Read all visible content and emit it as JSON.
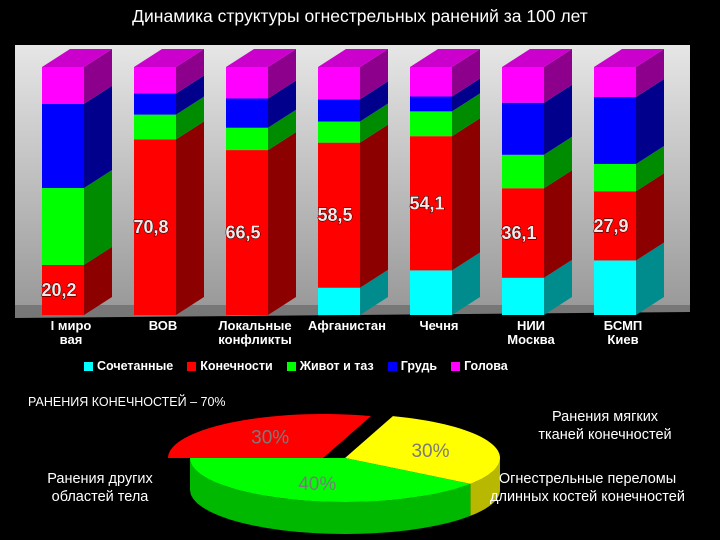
{
  "chart_data": [
    {
      "type": "bar",
      "stacked": true,
      "title": "Динамика структуры огнестрельных ранений за 100 лет",
      "categories": [
        "I миро\nвая",
        "ВОВ",
        "Локальные\nконфликты",
        "Афганистан",
        "Чечня",
        "НИИ\nМосква",
        "БСМП\nКиев"
      ],
      "ylim": [
        0,
        100
      ],
      "series": [
        {
          "name": "Сочетанные",
          "color": "#00ffff",
          "values": [
            0,
            0,
            0,
            11,
            18,
            15,
            22
          ]
        },
        {
          "name": "Конечности",
          "color": "#ff0000",
          "values": [
            20.2,
            70.8,
            66.5,
            58.5,
            54.1,
            36.1,
            27.9
          ],
          "value_labels": [
            "20,2",
            "70,8",
            "66,5",
            "58,5",
            "54,1",
            "36,1",
            "27,9"
          ]
        },
        {
          "name": "Живот и таз",
          "color": "#00ff00",
          "values": [
            31,
            10,
            9,
            8.5,
            10,
            13.5,
            11
          ]
        },
        {
          "name": "Грудь",
          "color": "#0000ff",
          "values": [
            34,
            8.5,
            11.8,
            9,
            6,
            21,
            27
          ]
        },
        {
          "name": "Голова",
          "color": "#ff00ff",
          "values": [
            14.8,
            10.7,
            12.7,
            13,
            11.9,
            14.4,
            12.1
          ]
        }
      ]
    },
    {
      "type": "pie",
      "title": "РАНЕНИЯ КОНЕЧНОСТЕЙ – 70%",
      "categories": [
        "Ранения других\nобластей тела",
        "Ранения мягких\nтканей конечностей",
        "Огнестрельные переломы\nдлинных костей конечностей"
      ],
      "values": [
        30,
        30,
        40
      ],
      "value_labels": [
        "30%",
        "30%",
        "40%"
      ],
      "colors": [
        "#ff0000",
        "#ffff00",
        "#00ff00"
      ]
    }
  ]
}
